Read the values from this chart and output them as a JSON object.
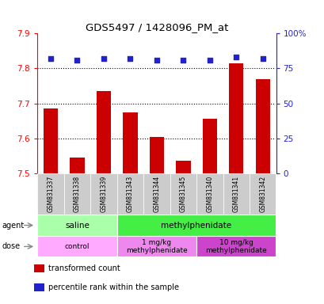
{
  "title": "GDS5497 / 1428096_PM_at",
  "samples": [
    "GSM831337",
    "GSM831338",
    "GSM831339",
    "GSM831343",
    "GSM831344",
    "GSM831345",
    "GSM831340",
    "GSM831341",
    "GSM831342"
  ],
  "bar_values": [
    7.685,
    7.545,
    7.735,
    7.675,
    7.605,
    7.535,
    7.655,
    7.815,
    7.77
  ],
  "percentile_values": [
    82,
    81,
    82,
    82,
    81,
    81,
    81,
    83,
    82
  ],
  "ylim": [
    7.5,
    7.9
  ],
  "yticks": [
    7.5,
    7.6,
    7.7,
    7.8,
    7.9
  ],
  "y2ticks": [
    0,
    25,
    50,
    75,
    100
  ],
  "y2labels": [
    "0",
    "25",
    "50",
    "75",
    "100%"
  ],
  "bar_color": "#cc0000",
  "dot_color": "#2222cc",
  "bar_width": 0.55,
  "agent_groups": [
    {
      "label": "saline",
      "start": 0,
      "end": 3,
      "color": "#aaffaa"
    },
    {
      "label": "methylphenidate",
      "start": 3,
      "end": 9,
      "color": "#44ee44"
    }
  ],
  "dose_groups": [
    {
      "label": "control",
      "start": 0,
      "end": 3,
      "color": "#ffaaff"
    },
    {
      "label": "1 mg/kg\nmethylphenidate",
      "start": 3,
      "end": 6,
      "color": "#ee88ee"
    },
    {
      "label": "10 mg/kg\nmethylphenidate",
      "start": 6,
      "end": 9,
      "color": "#cc44cc"
    }
  ],
  "legend_items": [
    {
      "color": "#cc0000",
      "label": "transformed count"
    },
    {
      "color": "#2222cc",
      "label": "percentile rank within the sample"
    }
  ],
  "plot_bg_color": "#ffffff",
  "label_area_color": "#cccccc"
}
